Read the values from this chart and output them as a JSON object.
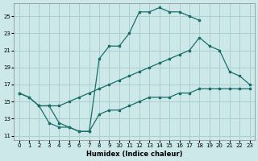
{
  "xlabel": "Humidex (Indice chaleur)",
  "xlim": [
    -0.5,
    23.5
  ],
  "ylim": [
    10.5,
    26.5
  ],
  "xticks": [
    0,
    1,
    2,
    3,
    4,
    5,
    6,
    7,
    8,
    9,
    10,
    11,
    12,
    13,
    14,
    15,
    16,
    17,
    18,
    19,
    20,
    21,
    22,
    23
  ],
  "yticks": [
    11,
    13,
    15,
    17,
    19,
    21,
    23,
    25
  ],
  "bg_color": "#cce8e8",
  "grid_color": "#aacfcf",
  "line_color": "#1a6e6a",
  "curve1_x": [
    0,
    1,
    2,
    3,
    4,
    5,
    6,
    7,
    8,
    9,
    10,
    11,
    12,
    13,
    14,
    15,
    16,
    17,
    18
  ],
  "curve1_y": [
    16,
    15.5,
    14.5,
    12.5,
    12.0,
    12.0,
    11.5,
    11.5,
    20.0,
    21.5,
    21.5,
    23.0,
    25.5,
    25.5,
    26.0,
    25.5,
    25.5,
    25.0,
    24.5
  ],
  "curve2_x": [
    0,
    1,
    2,
    3,
    4,
    5,
    6,
    7,
    8,
    9,
    10,
    11,
    12,
    13,
    14,
    15,
    16,
    17,
    18,
    19,
    20,
    21,
    22,
    23
  ],
  "curve2_y": [
    16,
    15.5,
    14.5,
    14.5,
    14.5,
    15.0,
    15.5,
    16.0,
    16.5,
    17.0,
    17.5,
    18.0,
    18.5,
    19.0,
    19.5,
    20.0,
    20.5,
    21.0,
    22.5,
    21.5,
    21.0,
    18.5,
    18.0,
    17.0
  ],
  "curve3_x": [
    2,
    3,
    4,
    5,
    6,
    7,
    8,
    9,
    10,
    11,
    12,
    13,
    14,
    15,
    16,
    17,
    18,
    19,
    20,
    21,
    22,
    23
  ],
  "curve3_y": [
    14.5,
    14.5,
    12.5,
    12.0,
    11.5,
    11.5,
    13.5,
    14.0,
    14.0,
    14.5,
    15.0,
    15.5,
    15.5,
    15.5,
    16.0,
    16.0,
    16.5,
    16.5,
    16.5,
    16.5,
    16.5,
    16.5
  ]
}
